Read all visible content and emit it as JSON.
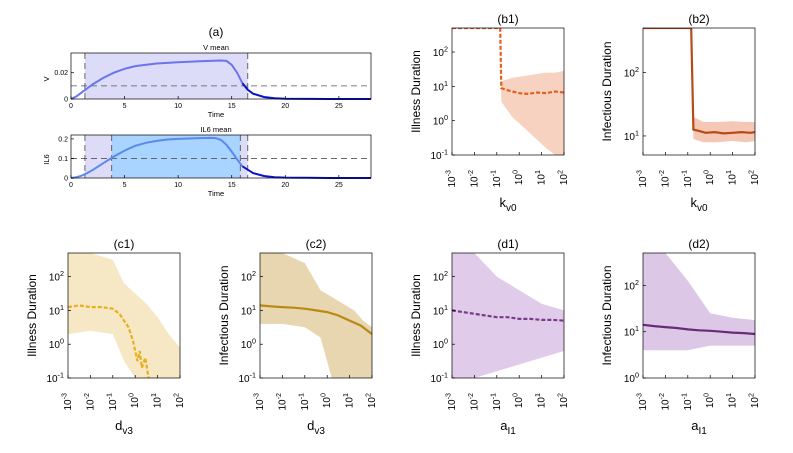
{
  "colors": {
    "v_line": "#6a74ee",
    "v_tail": "#0a14c8",
    "v_shade": "#dcdcf8",
    "il6_light": "#dcdcf8",
    "il6_mid": "#a8d4ff",
    "il6_line": "#5a88ee",
    "b1": "#e06020",
    "b1_fill": "#f8d2c0",
    "b2": "#b84a1a",
    "b2_fill": "#f4c8b4",
    "c1": "#e8b020",
    "c1_fill": "#f6e8c4",
    "c2": "#b88a14",
    "c2_fill": "#e8d6b0",
    "d1": "#7a3a8a",
    "d1_fill": "#e0ccea",
    "d2": "#6a2a7a",
    "d2_fill": "#dcc8e6"
  },
  "chart_data": [
    {
      "id": "a_top",
      "type": "line",
      "panel_label": "(a)",
      "title": "V mean",
      "xlabel": "Time",
      "ylabel": "V",
      "xlim": [
        0,
        28
      ],
      "ylim": [
        0,
        0.035
      ],
      "xticks": [
        "0",
        "5",
        "10",
        "15",
        "20",
        "25"
      ],
      "yticks": [
        "0",
        "0.02"
      ],
      "series": [
        {
          "name": "V mean",
          "x": [
            0,
            0.5,
            1,
            1.5,
            2,
            3,
            4,
            5,
            6,
            7,
            8,
            9,
            10,
            11,
            12,
            13,
            14,
            14.5,
            15,
            15.5,
            16,
            16.5,
            17,
            18,
            19,
            20,
            22,
            24,
            26,
            28
          ],
          "y": [
            0,
            0.002,
            0.005,
            0.008,
            0.011,
            0.016,
            0.02,
            0.023,
            0.025,
            0.026,
            0.027,
            0.0275,
            0.028,
            0.0283,
            0.0287,
            0.029,
            0.0293,
            0.029,
            0.026,
            0.02,
            0.012,
            0.007,
            0.004,
            0.0015,
            0.0006,
            0.0002,
            0.0001,
            0,
            0,
            0
          ]
        }
      ],
      "threshold": 0.01,
      "shaded_interval": [
        1.3,
        16.5
      ]
    },
    {
      "id": "a_bottom",
      "type": "line",
      "title": "IL6 mean",
      "xlabel": "Time",
      "ylabel": "IL6",
      "xlim": [
        0,
        28
      ],
      "ylim": [
        0,
        0.22
      ],
      "xticks": [
        "0",
        "5",
        "10",
        "15",
        "20",
        "25"
      ],
      "yticks": [
        "0",
        "0.1",
        "0.2"
      ],
      "series": [
        {
          "name": "IL6 mean",
          "x": [
            0,
            0.5,
            1,
            1.5,
            2,
            3,
            4,
            5,
            6,
            7,
            8,
            9,
            10,
            11,
            12,
            13,
            13.5,
            14,
            14.5,
            15,
            15.5,
            16,
            17,
            18,
            19,
            20,
            22,
            24,
            26,
            28
          ],
          "y": [
            0,
            0.004,
            0.012,
            0.025,
            0.04,
            0.075,
            0.11,
            0.14,
            0.165,
            0.18,
            0.19,
            0.197,
            0.2,
            0.202,
            0.204,
            0.205,
            0.204,
            0.195,
            0.17,
            0.135,
            0.095,
            0.06,
            0.025,
            0.01,
            0.004,
            0.002,
            0.001,
            0,
            0,
            0
          ]
        }
      ],
      "threshold": 0.1,
      "shaded_interval": [
        1.3,
        16.5
      ],
      "inner_interval": [
        3.8,
        15.8
      ]
    },
    {
      "id": "b1",
      "type": "line",
      "panel_label": "(b1)",
      "ylabel": "Illness Duration",
      "xlabel": "k",
      "xlabel_sub": "v0",
      "xscale": "log",
      "yscale": "log",
      "xlim": [
        -3,
        2
      ],
      "ylim": [
        -1,
        2.7
      ],
      "xticks": [
        "10",
        "10",
        "10",
        "10",
        "10",
        "10"
      ],
      "xtick_exp": [
        "-3",
        "-2",
        "-1",
        "0",
        "1",
        "2"
      ],
      "yticks": [
        "10",
        "10",
        "10",
        "10"
      ],
      "ytick_exp": [
        "-1",
        "0",
        "1",
        "2"
      ],
      "series": [
        {
          "name": "mean",
          "style": "dashed",
          "log10x": [
            -3,
            -0.85,
            -0.8,
            -0.6,
            -0.3,
            0,
            0.4,
            0.8,
            1.2,
            1.6,
            2
          ],
          "log10y": [
            2.7,
            2.7,
            0.95,
            0.9,
            0.85,
            0.8,
            0.78,
            0.82,
            0.8,
            0.85,
            0.82
          ]
        }
      ],
      "band": {
        "log10x": [
          -3,
          -0.85,
          -0.8,
          -0.3,
          0.2,
          0.7,
          1.2,
          1.6,
          2
        ],
        "log10lo": [
          2.7,
          2.7,
          0.55,
          0.1,
          -0.2,
          -0.5,
          -0.8,
          -1.0,
          -1.0
        ],
        "log10hi": [
          2.7,
          2.7,
          1.15,
          1.25,
          1.3,
          1.35,
          1.4,
          1.4,
          1.45
        ]
      }
    },
    {
      "id": "b2",
      "type": "line",
      "panel_label": "(b2)",
      "ylabel": "Infectious Duration",
      "xlabel": "k",
      "xlabel_sub": "v0",
      "xscale": "log",
      "yscale": "log",
      "xlim": [
        -3,
        2
      ],
      "ylim": [
        0.7,
        2.7
      ],
      "xticks": [
        "10",
        "10",
        "10",
        "10",
        "10",
        "10"
      ],
      "xtick_exp": [
        "-3",
        "-2",
        "-1",
        "0",
        "1",
        "2"
      ],
      "yticks": [
        "10",
        "10"
      ],
      "ytick_exp": [
        "1",
        "2"
      ],
      "series": [
        {
          "name": "mean",
          "style": "solid",
          "log10x": [
            -3,
            -0.85,
            -0.75,
            -0.5,
            -0.2,
            0.2,
            0.6,
            1,
            1.4,
            1.8,
            2
          ],
          "log10y": [
            2.7,
            2.7,
            1.1,
            1.08,
            1.05,
            1.06,
            1.04,
            1.05,
            1.06,
            1.05,
            1.06
          ]
        }
      ],
      "band": {
        "log10x": [
          -3,
          -0.85,
          -0.75,
          -0.3,
          0.3,
          1,
          1.6,
          2
        ],
        "log10lo": [
          2.7,
          2.7,
          0.95,
          0.9,
          0.9,
          0.92,
          0.9,
          0.92
        ],
        "log10hi": [
          2.7,
          2.7,
          1.3,
          1.22,
          1.22,
          1.23,
          1.22,
          1.22
        ]
      }
    },
    {
      "id": "c1",
      "type": "line",
      "panel_label": "(c1)",
      "ylabel": "Illness Duration",
      "xlabel": "d",
      "xlabel_sub": "v3",
      "xscale": "log",
      "yscale": "log",
      "xlim": [
        -3,
        2
      ],
      "ylim": [
        -1,
        2.7
      ],
      "xticks": [
        "10",
        "10",
        "10",
        "10",
        "10",
        "10"
      ],
      "xtick_exp": [
        "-3",
        "-2",
        "-1",
        "0",
        "1",
        "2"
      ],
      "yticks": [
        "10",
        "10",
        "10",
        "10"
      ],
      "ytick_exp": [
        "-1",
        "0",
        "1",
        "2"
      ],
      "series": [
        {
          "name": "mean",
          "style": "dashed",
          "log10x": [
            -3,
            -2.5,
            -2,
            -1.5,
            -1,
            -0.7,
            -0.5,
            -0.3,
            -0.1,
            0.1,
            0.2,
            0.3,
            0.45,
            0.6
          ],
          "log10y": [
            1.1,
            1.15,
            1.1,
            1.1,
            1.05,
            0.9,
            0.7,
            0.5,
            0.1,
            -0.5,
            -0.2,
            -0.7,
            -0.4,
            -1.0
          ]
        }
      ],
      "band": {
        "log10x": [
          -3,
          -2,
          -1,
          -0.5,
          0,
          0.5,
          1,
          1.5,
          2
        ],
        "log10lo": [
          0.3,
          0.4,
          0.3,
          -0.5,
          -1,
          -1,
          -1,
          -1,
          -1
        ],
        "log10hi": [
          2.7,
          2.7,
          2.5,
          1.8,
          1.5,
          1.2,
          0.8,
          0.3,
          -0.1
        ]
      }
    },
    {
      "id": "c2",
      "type": "line",
      "panel_label": "(c2)",
      "ylabel": "Infectious Duration",
      "xlabel": "d",
      "xlabel_sub": "v3",
      "xscale": "log",
      "yscale": "log",
      "xlim": [
        -3,
        2
      ],
      "ylim": [
        -1,
        2.7
      ],
      "xticks": [
        "10",
        "10",
        "10",
        "10",
        "10",
        "10"
      ],
      "xtick_exp": [
        "-3",
        "-2",
        "-1",
        "0",
        "1",
        "2"
      ],
      "yticks": [
        "10",
        "10",
        "10",
        "10"
      ],
      "ytick_exp": [
        "-1",
        "0",
        "1",
        "2"
      ],
      "series": [
        {
          "name": "mean",
          "style": "solid",
          "log10x": [
            -3,
            -2.5,
            -2,
            -1.5,
            -1,
            -0.5,
            0,
            0.5,
            1,
            1.5,
            2
          ],
          "log10y": [
            1.15,
            1.12,
            1.1,
            1.08,
            1.05,
            1.0,
            0.95,
            0.85,
            0.7,
            0.55,
            0.3
          ]
        }
      ],
      "band": {
        "log10x": [
          -3,
          -2,
          -1,
          -0.3,
          0.2,
          0.7,
          1.2,
          1.6,
          2
        ],
        "log10lo": [
          0.6,
          0.6,
          0.5,
          0.2,
          -1,
          -1,
          -1,
          -1,
          -1
        ],
        "log10hi": [
          2.7,
          2.7,
          2.4,
          1.6,
          1.4,
          1.2,
          1.0,
          0.7,
          0.5
        ]
      }
    },
    {
      "id": "d1",
      "type": "line",
      "panel_label": "(d1)",
      "ylabel": "Illness Duration",
      "xlabel": "a",
      "xlabel_sub": "I1",
      "xscale": "log",
      "yscale": "log",
      "xlim": [
        -3,
        2
      ],
      "ylim": [
        -1,
        2.7
      ],
      "xticks": [
        "10",
        "10",
        "10",
        "10",
        "10",
        "10"
      ],
      "xtick_exp": [
        "-3",
        "-2",
        "-1",
        "0",
        "1",
        "2"
      ],
      "yticks": [
        "10",
        "10",
        "10",
        "10"
      ],
      "ytick_exp": [
        "-1",
        "0",
        "1",
        "2"
      ],
      "series": [
        {
          "name": "mean",
          "style": "dashed",
          "log10x": [
            -3,
            -2.5,
            -2,
            -1.5,
            -1,
            -0.5,
            0,
            0.5,
            1,
            1.5,
            2
          ],
          "log10y": [
            1.0,
            0.95,
            0.9,
            0.85,
            0.8,
            0.8,
            0.75,
            0.75,
            0.72,
            0.72,
            0.7
          ]
        }
      ],
      "band": {
        "log10x": [
          -3,
          -2,
          -1,
          0,
          1,
          2
        ],
        "log10lo": [
          -1,
          -1,
          -0.8,
          -0.6,
          -0.4,
          -0.2
        ],
        "log10hi": [
          2.7,
          2.7,
          2.0,
          1.6,
          1.2,
          1.0
        ]
      }
    },
    {
      "id": "d2",
      "type": "line",
      "panel_label": "(d2)",
      "ylabel": "Infectious Duration",
      "xlabel": "a",
      "xlabel_sub": "I1",
      "xscale": "log",
      "yscale": "log",
      "xlim": [
        -3,
        2
      ],
      "ylim": [
        0,
        2.7
      ],
      "xticks": [
        "10",
        "10",
        "10",
        "10",
        "10",
        "10"
      ],
      "xtick_exp": [
        "-3",
        "-2",
        "-1",
        "0",
        "1",
        "2"
      ],
      "yticks": [
        "10",
        "10",
        "10"
      ],
      "ytick_exp": [
        "0",
        "1",
        "2"
      ],
      "series": [
        {
          "name": "mean",
          "style": "solid",
          "log10x": [
            -3,
            -2.5,
            -2,
            -1.5,
            -1,
            -0.5,
            0,
            0.5,
            1,
            1.5,
            2
          ],
          "log10y": [
            1.15,
            1.12,
            1.1,
            1.08,
            1.05,
            1.03,
            1.02,
            1.0,
            0.98,
            0.97,
            0.95
          ]
        }
      ],
      "band": {
        "log10x": [
          -3,
          -2,
          -1,
          0,
          1,
          2
        ],
        "log10lo": [
          0.6,
          0.6,
          0.6,
          0.7,
          0.7,
          0.7
        ],
        "log10hi": [
          2.7,
          2.7,
          2.1,
          1.4,
          1.3,
          1.25
        ]
      }
    }
  ]
}
